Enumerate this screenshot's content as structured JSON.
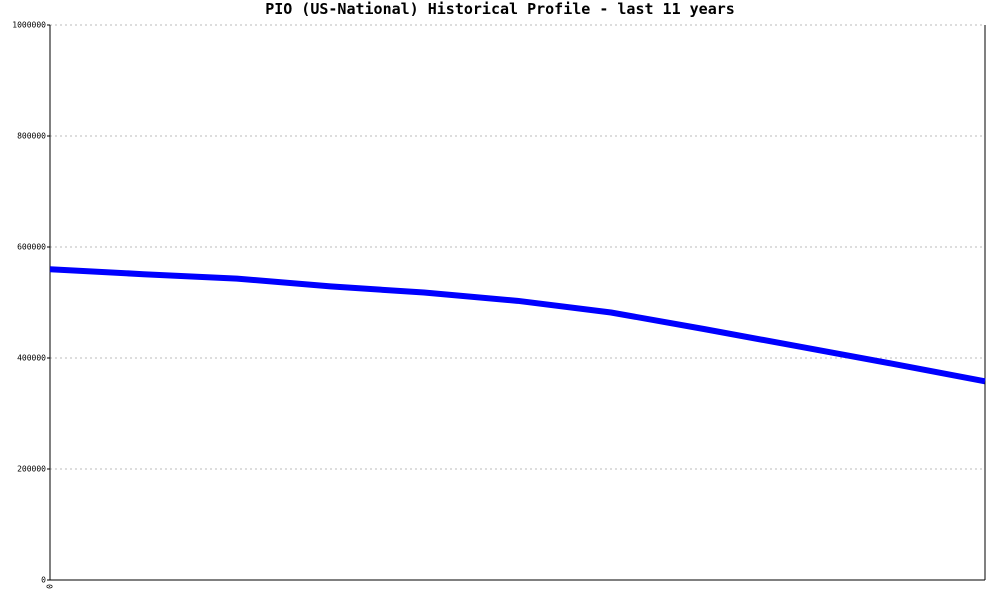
{
  "chart_data": {
    "type": "line",
    "title": "PIO (US-National) Historical Profile - last 11 years",
    "categories": [
      "0",
      null,
      null,
      null,
      null,
      null,
      null,
      null,
      null,
      null,
      null
    ],
    "series": [
      {
        "color": "#0000ff",
        "values": [
          560000,
          551000,
          543000,
          529000,
          518000,
          503000,
          482000,
          452000,
          421000,
          390000,
          358000
        ]
      }
    ],
    "ylim": [
      0,
      1000000
    ],
    "yticks": [
      0,
      200000,
      400000,
      600000,
      800000,
      1000000
    ],
    "grid": true
  }
}
